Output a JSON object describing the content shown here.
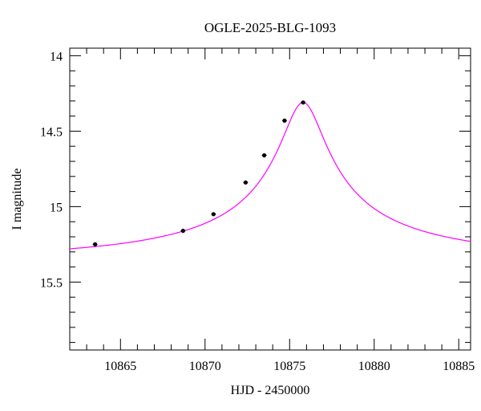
{
  "chart_data": {
    "type": "scatter",
    "title": "OGLE-2025-BLG-1093",
    "xlabel": "HJD - 2450000",
    "ylabel": "I magnitude",
    "xlim": [
      10862,
      10885.7
    ],
    "ylim": [
      15.95,
      13.95
    ],
    "y_inverted": true,
    "x_ticks": [
      10865,
      10870,
      10875,
      10880,
      10885
    ],
    "y_ticks": [
      14,
      14.5,
      15,
      15.5
    ],
    "x_tick_labels": [
      "10865",
      "10870",
      "10875",
      "10880",
      "10885"
    ],
    "y_tick_labels": [
      "14",
      "14.5",
      "15",
      "15.5"
    ],
    "x_minor_step": 1,
    "y_minor_step": 0.1,
    "grid": false,
    "legend": "none",
    "series": [
      {
        "type": "scatter",
        "color": "#000000",
        "x": [
          10863.5,
          10868.7,
          10870.5,
          10872.4,
          10873.5,
          10874.7,
          10875.8
        ],
        "y": [
          15.25,
          15.16,
          15.05,
          14.84,
          14.66,
          14.43,
          14.31
        ]
      },
      {
        "type": "line",
        "color": "#ff00ff",
        "model": {
          "t0": 10875.8,
          "tE": 19.0,
          "u0": 0.062,
          "baseline_mag": 15.35,
          "peak_mag": 14.31
        }
      }
    ]
  }
}
